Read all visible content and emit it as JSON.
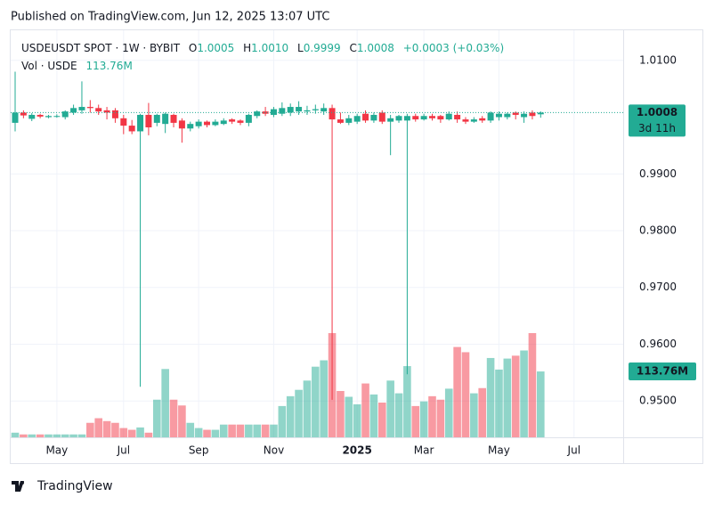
{
  "header": {
    "published": "Published on TradingView.com, Jun 12, 2025 13:07 UTC",
    "logo": "TradingView"
  },
  "chart_data": {
    "type": "candlestick",
    "title": "USDEUSDT SPOT · 1W · BYBIT",
    "ohlc_labels": [
      {
        "label": "O",
        "value": "1.0005"
      },
      {
        "label": "H",
        "value": "1.0010"
      },
      {
        "label": "L",
        "value": "0.9999"
      },
      {
        "label": "C",
        "value": "1.0008"
      }
    ],
    "change": "+0.0003 (+0.03%)",
    "categories": [
      null,
      null,
      null,
      null,
      null,
      "May",
      null,
      null,
      null,
      null,
      null,
      null,
      null,
      "Jul",
      null,
      null,
      null,
      null,
      null,
      null,
      null,
      null,
      "Sep",
      null,
      null,
      null,
      null,
      null,
      null,
      null,
      null,
      "Nov",
      null,
      null,
      null,
      null,
      null,
      null,
      null,
      null,
      null,
      "2025",
      null,
      null,
      null,
      null,
      null,
      null,
      null,
      "Mar",
      null,
      null,
      null,
      null,
      null,
      null,
      null,
      null,
      "May",
      null,
      null,
      null,
      null,
      null,
      null,
      null,
      null,
      "Jul"
    ],
    "open": [
      0.999,
      1.0008,
      0.9997,
      1.0004,
      1.0,
      1.0001,
      1.0,
      1.0008,
      1.0012,
      1.0018,
      1.0016,
      1.0012,
      1.0012,
      0.9998,
      0.9985,
      0.9975,
      1.0004,
      0.999,
      0.9988,
      1.0004,
      0.9994,
      0.998,
      0.9984,
      0.9992,
      0.9986,
      0.9988,
      0.9996,
      0.9994,
      0.999,
      1.0002,
      1.001,
      1.0004,
      1.0006,
      1.0008,
      1.001,
      1.001,
      1.0012,
      1.001,
      1.0016,
      0.9996,
      0.999,
      0.9992,
      1.0006,
      0.9994,
      1.0008,
      0.9992,
      0.9994,
      0.9994,
      1.0002,
      0.9996,
      1.0002,
      1.0002,
      0.9996,
      1.0004,
      0.9996,
      0.9992,
      0.9998,
      0.9994,
      1.0,
      1.0,
      1.0008,
      1.0,
      1.0008,
      1.0005,
      null,
      null,
      null,
      null
    ],
    "high": [
      1.008,
      1.0012,
      1.0007,
      1.0006,
      1.0004,
      1.0005,
      1.0012,
      1.0022,
      1.0063,
      1.003,
      1.0022,
      1.0018,
      1.0016,
      1.0004,
      0.9995,
      1.0006,
      1.0025,
      1.0006,
      1.0008,
      1.0006,
      0.9998,
      0.9992,
      0.9996,
      0.9994,
      0.9996,
      0.9998,
      0.9998,
      0.9996,
      1.0006,
      1.0012,
      1.0018,
      1.0018,
      1.0026,
      1.0024,
      1.0028,
      1.002,
      1.0022,
      1.0024,
      1.0022,
      1.0008,
      1.0004,
      1.0006,
      1.0012,
      1.0008,
      1.0012,
      1.0004,
      1.0004,
      1.0006,
      1.0006,
      1.0006,
      1.0006,
      1.0004,
      1.001,
      1.001,
      1.0,
      1.0,
      1.0002,
      1.001,
      1.001,
      1.0008,
      1.001,
      1.001,
      1.0012,
      1.001,
      null,
      null,
      null,
      null
    ],
    "low": [
      0.9975,
      0.9998,
      0.9993,
      0.9998,
      0.9998,
      0.9999,
      0.9996,
      1.0004,
      1.0006,
      1.0008,
      1.0004,
      0.9996,
      0.999,
      0.997,
      0.997,
      0.9525,
      0.9968,
      0.9984,
      0.9972,
      0.9982,
      0.9955,
      0.9975,
      0.998,
      0.9982,
      0.9984,
      0.9986,
      0.9988,
      0.9986,
      0.9984,
      0.9998,
      1.0002,
      1.0,
      1.0002,
      1.0002,
      1.0004,
      1.0004,
      1.0006,
      1.0004,
      0.9502,
      0.9988,
      0.9986,
      0.9988,
      0.999,
      0.999,
      0.9988,
      0.9933,
      0.999,
      0.9547,
      0.9992,
      0.9994,
      0.9994,
      0.999,
      0.9994,
      0.999,
      0.9988,
      0.999,
      0.999,
      0.999,
      0.9994,
      0.9996,
      0.9996,
      0.999,
      0.9996,
      0.9999,
      null,
      null,
      null,
      null
    ],
    "close": [
      1.0008,
      1.0003,
      1.0004,
      1.0001,
      1.0002,
      1.0002,
      1.001,
      1.0016,
      1.0018,
      1.0016,
      1.001,
      1.0008,
      0.9998,
      0.9985,
      0.9975,
      1.0004,
      0.9982,
      1.0004,
      1.0006,
      0.999,
      0.998,
      0.9988,
      0.9992,
      0.9986,
      0.9992,
      0.9994,
      0.9992,
      0.999,
      1.0004,
      1.001,
      1.0006,
      1.0014,
      1.0016,
      1.0018,
      1.0018,
      1.0012,
      1.0014,
      1.0016,
      0.9996,
      0.999,
      0.9998,
      1.0002,
      0.9994,
      1.0004,
      0.9992,
      0.9998,
      1.0002,
      1.0002,
      0.9996,
      1.0002,
      0.9998,
      0.9996,
      1.0006,
      0.9996,
      0.9992,
      0.9996,
      0.9994,
      1.0008,
      1.0006,
      1.0006,
      1.0004,
      1.0006,
      1.0002,
      1.0008,
      null,
      null,
      null,
      null
    ],
    "volume": {
      "name": "Vol · USDE",
      "values": [
        8,
        5,
        5,
        5,
        5,
        5,
        5,
        5,
        5,
        25,
        33,
        28,
        25,
        16,
        13,
        17,
        8,
        65,
        118,
        65,
        55,
        25,
        16,
        13,
        13,
        22,
        22,
        22,
        22,
        22,
        22,
        22,
        54,
        71,
        82,
        98,
        122,
        133,
        180,
        80,
        70,
        57,
        93,
        74,
        60,
        98,
        76,
        123,
        54,
        62,
        71,
        65,
        84,
        156,
        147,
        76,
        85,
        137,
        117,
        136,
        141,
        150,
        180,
        113.76,
        null,
        null,
        null,
        null
      ],
      "value_labels": [
        null,
        null,
        null,
        null,
        null,
        null,
        null,
        null,
        null,
        null,
        null,
        null,
        null,
        null,
        null,
        null,
        null,
        null,
        null,
        null,
        null,
        null,
        null,
        null,
        null,
        null,
        null,
        null,
        null,
        null,
        null,
        null,
        null,
        null,
        null,
        null,
        null,
        null,
        null,
        null,
        null,
        null,
        null,
        null,
        null,
        null,
        null,
        null,
        null,
        null,
        null,
        null,
        null,
        null,
        null,
        null,
        null,
        null,
        null,
        null,
        null,
        null,
        null,
        "113.76M",
        null,
        null,
        null,
        null
      ]
    },
    "last_price": {
      "value": 1.0008,
      "label": "1.0008",
      "countdown": "3d 11h"
    },
    "ylim": [
      0.9436,
      1.0153
    ],
    "yticks": [
      {
        "value": 0.95,
        "label": "0.9500"
      },
      {
        "value": 0.96,
        "label": "0.9600"
      },
      {
        "value": 0.97,
        "label": "0.9700"
      },
      {
        "value": 0.98,
        "label": "0.9800"
      },
      {
        "value": 0.99,
        "label": "0.9900"
      },
      {
        "value": 1.01,
        "label": "1.0100"
      }
    ],
    "up_color": "#22ab94",
    "down_color": "#f23645",
    "grid": true
  }
}
